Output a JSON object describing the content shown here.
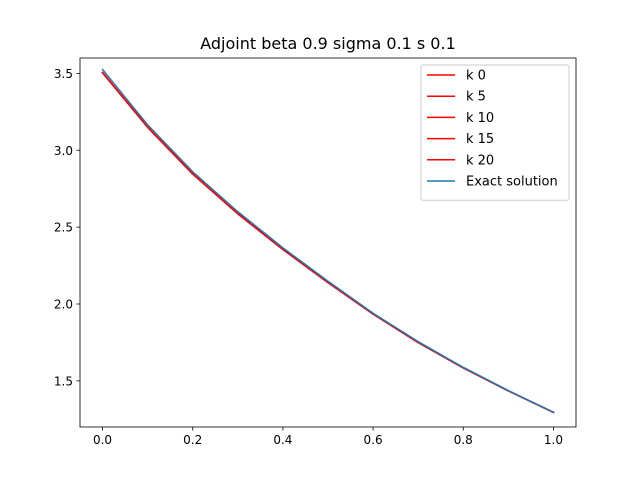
{
  "chart_data": {
    "type": "line",
    "title": "Adjoint beta 0.9 sigma 0.1 s 0.1",
    "xlabel": "",
    "ylabel": "",
    "xlim": [
      -0.05,
      1.05
    ],
    "ylim": [
      1.2,
      3.6
    ],
    "x_ticks": [
      0.0,
      0.2,
      0.4,
      0.6,
      0.8,
      1.0
    ],
    "x_tick_labels": [
      "0.0",
      "0.2",
      "0.4",
      "0.6",
      "0.8",
      "1.0"
    ],
    "y_ticks": [
      1.5,
      2.0,
      2.5,
      3.0,
      3.5
    ],
    "y_tick_labels": [
      "1.5",
      "2.0",
      "2.5",
      "3.0",
      "3.5"
    ],
    "grid": false,
    "legend_position": "top-right",
    "curve_x": [
      0.0,
      0.1,
      0.2,
      0.3,
      0.4,
      0.5,
      0.6,
      0.7,
      0.8,
      0.9,
      1.0
    ],
    "series": [
      {
        "name": "k 0",
        "color": "#ff0000",
        "values": [
          3.505,
          3.15,
          2.846,
          2.587,
          2.355,
          2.14,
          1.935,
          1.75,
          1.585,
          1.435,
          1.295
        ]
      },
      {
        "name": "k 5",
        "color": "#ff0000",
        "values": [
          3.505,
          3.15,
          2.846,
          2.587,
          2.355,
          2.14,
          1.935,
          1.75,
          1.585,
          1.435,
          1.295
        ]
      },
      {
        "name": "k 10",
        "color": "#ff0000",
        "values": [
          3.505,
          3.15,
          2.846,
          2.587,
          2.355,
          2.14,
          1.935,
          1.75,
          1.585,
          1.435,
          1.295
        ]
      },
      {
        "name": "k 15",
        "color": "#ff0000",
        "values": [
          3.505,
          3.15,
          2.846,
          2.587,
          2.355,
          2.14,
          1.935,
          1.75,
          1.585,
          1.435,
          1.295
        ]
      },
      {
        "name": "k 20",
        "color": "#ff0000",
        "values": [
          3.505,
          3.15,
          2.846,
          2.587,
          2.355,
          2.14,
          1.935,
          1.75,
          1.585,
          1.435,
          1.295
        ]
      },
      {
        "name": "Exact solution",
        "color": "#1f77b4",
        "values": [
          3.525,
          3.165,
          2.86,
          2.6,
          2.365,
          2.148,
          1.94,
          1.755,
          1.588,
          1.437,
          1.295
        ]
      }
    ]
  }
}
